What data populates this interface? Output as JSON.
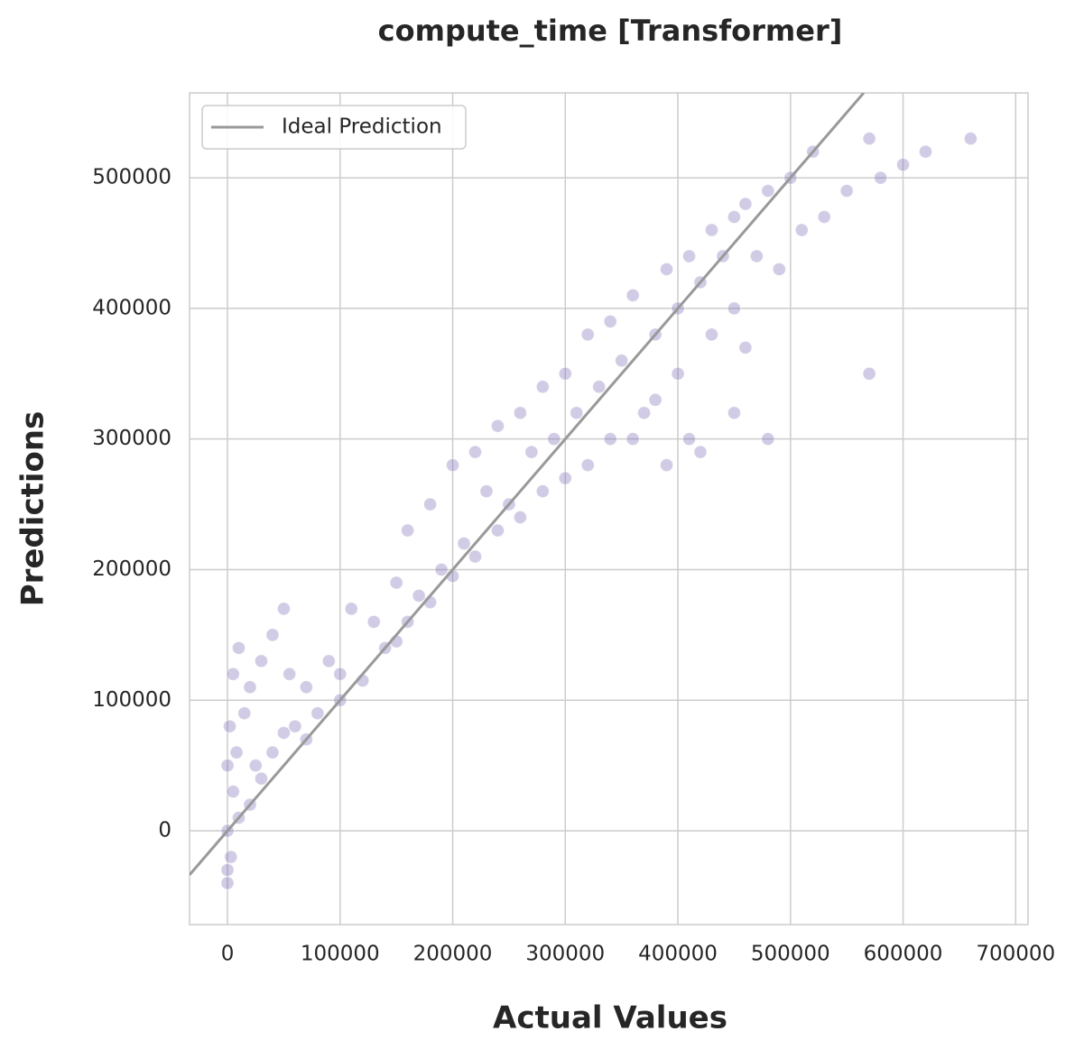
{
  "chart_data": {
    "type": "scatter",
    "title": "compute_time [Transformer]",
    "xlabel": "Actual Values",
    "ylabel": "Predictions",
    "xlim": [
      -33700,
      711000
    ],
    "ylim": [
      -71800,
      565000
    ],
    "xticks": [
      0,
      100000,
      200000,
      300000,
      400000,
      500000,
      600000,
      700000
    ],
    "yticks": [
      0,
      100000,
      200000,
      300000,
      400000,
      500000
    ],
    "grid": true,
    "legend": "upper left",
    "scatter": {
      "color": "#7b6bb5",
      "x": [
        0,
        0,
        0,
        2000,
        3000,
        5000,
        5000,
        8000,
        10000,
        10000,
        15000,
        20000,
        20000,
        25000,
        30000,
        30000,
        40000,
        40000,
        50000,
        50000,
        55000,
        60000,
        70000,
        70000,
        80000,
        90000,
        100000,
        100000,
        110000,
        120000,
        130000,
        140000,
        150000,
        150000,
        160000,
        160000,
        170000,
        180000,
        180000,
        190000,
        200000,
        200000,
        210000,
        220000,
        220000,
        230000,
        240000,
        240000,
        250000,
        260000,
        260000,
        270000,
        280000,
        280000,
        290000,
        300000,
        300000,
        310000,
        320000,
        320000,
        330000,
        340000,
        340000,
        350000,
        360000,
        360000,
        370000,
        380000,
        380000,
        390000,
        390000,
        400000,
        400000,
        410000,
        410000,
        420000,
        430000,
        430000,
        440000,
        450000,
        450000,
        460000,
        470000,
        480000,
        490000,
        500000,
        510000,
        520000,
        530000,
        550000,
        570000,
        580000,
        600000,
        620000,
        660000,
        450000,
        480000,
        420000,
        460000,
        570000,
        0
      ],
      "y": [
        0,
        50000,
        -30000,
        80000,
        -20000,
        30000,
        120000,
        60000,
        140000,
        10000,
        90000,
        20000,
        110000,
        50000,
        130000,
        40000,
        150000,
        60000,
        170000,
        75000,
        120000,
        80000,
        110000,
        70000,
        90000,
        130000,
        120000,
        100000,
        170000,
        115000,
        160000,
        140000,
        190000,
        145000,
        230000,
        160000,
        180000,
        250000,
        175000,
        200000,
        280000,
        195000,
        220000,
        290000,
        210000,
        260000,
        310000,
        230000,
        250000,
        320000,
        240000,
        290000,
        340000,
        260000,
        300000,
        350000,
        270000,
        320000,
        380000,
        280000,
        340000,
        390000,
        300000,
        360000,
        410000,
        300000,
        320000,
        380000,
        330000,
        430000,
        280000,
        400000,
        350000,
        440000,
        300000,
        420000,
        460000,
        380000,
        440000,
        470000,
        400000,
        480000,
        440000,
        490000,
        430000,
        500000,
        460000,
        520000,
        470000,
        490000,
        530000,
        500000,
        510000,
        520000,
        530000,
        320000,
        300000,
        290000,
        370000,
        350000,
        -40000
      ]
    },
    "series": [
      {
        "name": "Ideal Prediction",
        "color": "#999999",
        "x": [
          -33700,
          565000
        ],
        "values": [
          -33700,
          565000
        ]
      }
    ]
  }
}
